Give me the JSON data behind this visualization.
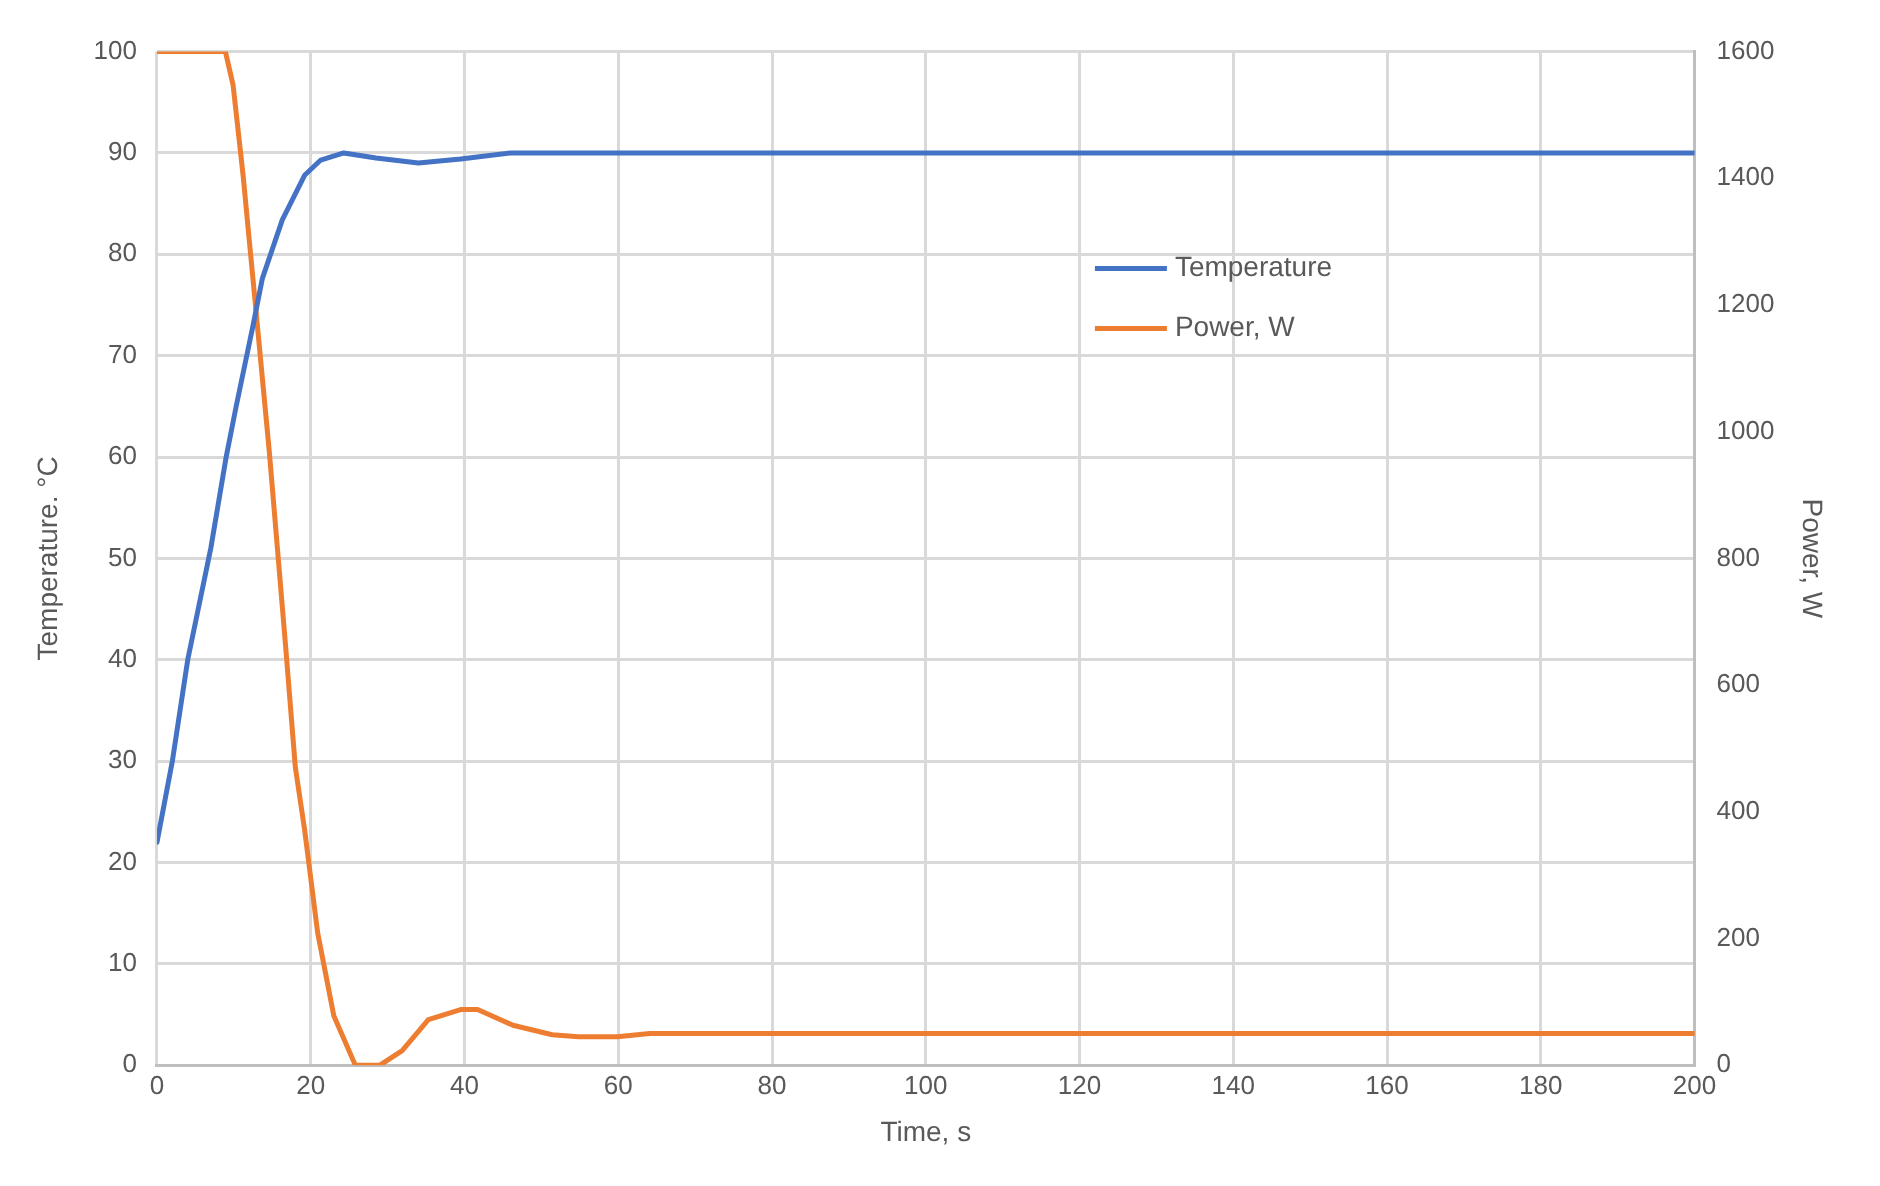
{
  "chart_data": {
    "type": "line",
    "xlabel": "Time, s",
    "ylabel": "Temperature. °C",
    "y2label": "Power, W",
    "xlim": [
      0,
      200
    ],
    "xticks": [
      0,
      20,
      40,
      60,
      80,
      100,
      120,
      140,
      160,
      180,
      200
    ],
    "ylim": [
      0,
      100
    ],
    "yticks": [
      0,
      10,
      20,
      30,
      40,
      50,
      60,
      70,
      80,
      90,
      100
    ],
    "y2lim": [
      0,
      1600
    ],
    "y2ticks": [
      0,
      200,
      400,
      600,
      800,
      1000,
      1200,
      1400,
      1600
    ],
    "grid": true,
    "legend": "right",
    "marker": "none",
    "line_style": "solid",
    "series": [
      {
        "name": "Temperature",
        "color": "#4472c4",
        "x": [
          0,
          2,
          4,
          7,
          9,
          10.3,
          12.5,
          13.7,
          16.3,
          19.2,
          21.3,
          24.3,
          28.5,
          34,
          39.5,
          46,
          200
        ],
        "values": [
          22,
          30,
          40,
          51,
          60,
          65,
          73,
          77.6,
          83.4,
          87.8,
          89.3,
          90,
          89.5,
          89,
          89.4,
          90,
          90
        ]
      },
      {
        "name": "Power, W",
        "axis": "y2",
        "color": "#ed7d31",
        "x": [
          0,
          8.9,
          9.9,
          11.2,
          12.9,
          14.6,
          16.7,
          18,
          19.2,
          20.9,
          23,
          25.8,
          29,
          31.9,
          35.3,
          39.6,
          41.7,
          46.3,
          51.4,
          54.8,
          59.9,
          64.1,
          200
        ],
        "values": [
          1600,
          1600,
          1547,
          1405,
          1188,
          970,
          666,
          470,
          372,
          209,
          78,
          0,
          0,
          23,
          72,
          88,
          88,
          63,
          48,
          45,
          45,
          50,
          50
        ]
      }
    ]
  }
}
